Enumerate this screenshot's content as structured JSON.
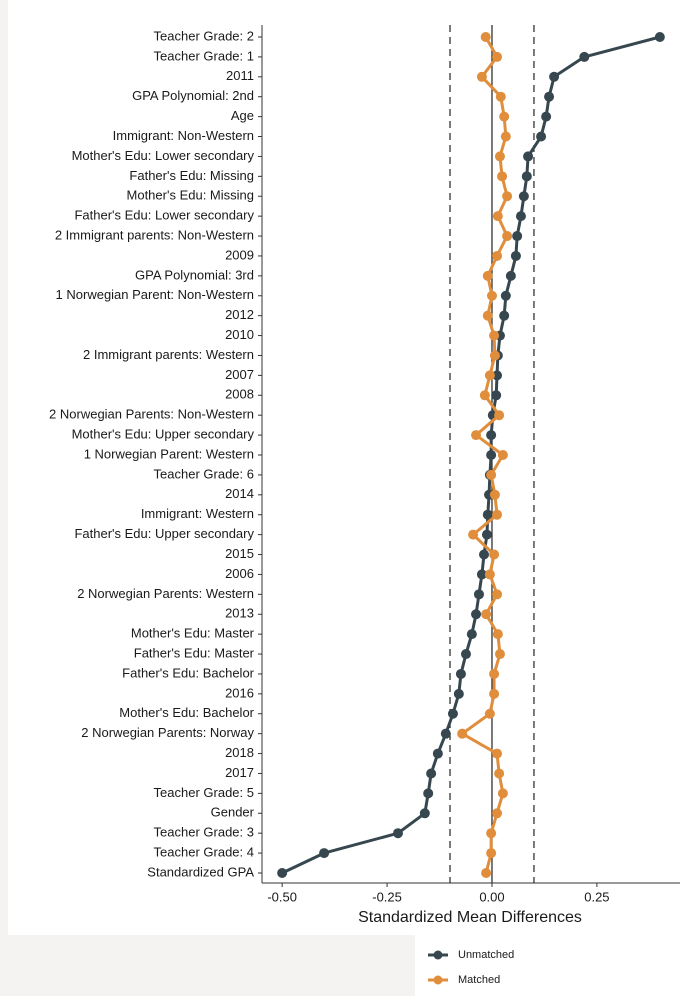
{
  "chart_data": {
    "type": "dot-line",
    "xlabel": "Standardized Mean Differences",
    "categories": [
      "Teacher Grade: 2",
      "Teacher Grade: 1",
      "2011",
      "GPA Polynomial: 2nd",
      "Age",
      "Immigrant: Non-Western",
      "Mother's Edu: Lower secondary",
      "Father's Edu: Missing",
      "Mother's Edu: Missing",
      "Father's Edu: Lower secondary",
      "2 Immigrant parents: Non-Western",
      "2009",
      "GPA Polynomial: 3rd",
      "1 Norwegian Parent: Non-Western",
      "2012",
      "2010",
      "2 Immigrant parents: Western",
      "2007",
      "2008",
      "2 Norwegian Parents: Non-Western",
      "Mother's Edu: Upper secondary",
      "1 Norwegian Parent: Western",
      "Teacher Grade: 6",
      "2014",
      "Immigrant: Western",
      "Father's Edu: Upper secondary",
      "2015",
      "2006",
      "2 Norwegian Parents: Western",
      "2013",
      "Mother's Edu: Master",
      "Father's Edu: Master",
      "Father's Edu: Bachelor",
      "2016",
      "Mother's Edu: Bachelor",
      "2 Norwegian Parents: Norway",
      "2018",
      "2017",
      "Teacher Grade: 5",
      "Gender",
      "Teacher Grade: 3",
      "Teacher Grade: 4",
      "Standardized GPA"
    ],
    "series": [
      {
        "name": "Unmatched",
        "color": "#37474f",
        "values": [
          0.4,
          0.22,
          0.148,
          0.136,
          0.129,
          0.117,
          0.086,
          0.083,
          0.076,
          0.069,
          0.06,
          0.057,
          0.045,
          0.033,
          0.029,
          0.019,
          0.014,
          0.012,
          0.01,
          0.002,
          -0.002,
          -0.002,
          -0.005,
          -0.007,
          -0.01,
          -0.012,
          -0.019,
          -0.024,
          -0.031,
          -0.038,
          -0.048,
          -0.062,
          -0.074,
          -0.079,
          -0.093,
          -0.11,
          -0.129,
          -0.145,
          -0.152,
          -0.16,
          -0.224,
          -0.4,
          -0.5
        ]
      },
      {
        "name": "Matched",
        "color": "#e08e3c",
        "values": [
          -0.015,
          0.012,
          -0.024,
          0.021,
          0.029,
          0.033,
          0.019,
          0.024,
          0.036,
          0.014,
          0.036,
          0.012,
          -0.01,
          0,
          -0.01,
          0.005,
          0.007,
          -0.005,
          -0.017,
          0.017,
          -0.038,
          0.026,
          -0.002,
          0.007,
          0.012,
          -0.045,
          0.005,
          -0.005,
          0.012,
          -0.014,
          0.014,
          0.019,
          0.005,
          0.005,
          -0.005,
          -0.071,
          0.012,
          0.017,
          0.026,
          0.012,
          -0.002,
          -0.002,
          -0.014
        ]
      }
    ],
    "xlim": [
      -0.548,
      0.448
    ],
    "xticks": [
      {
        "value": -0.5,
        "label": "-0.50"
      },
      {
        "value": -0.25,
        "label": "-0.25"
      },
      {
        "value": 0,
        "label": "0.00"
      },
      {
        "value": 0.25,
        "label": "0.25"
      }
    ],
    "reference_lines": [
      -0.1,
      0,
      0.1
    ]
  }
}
